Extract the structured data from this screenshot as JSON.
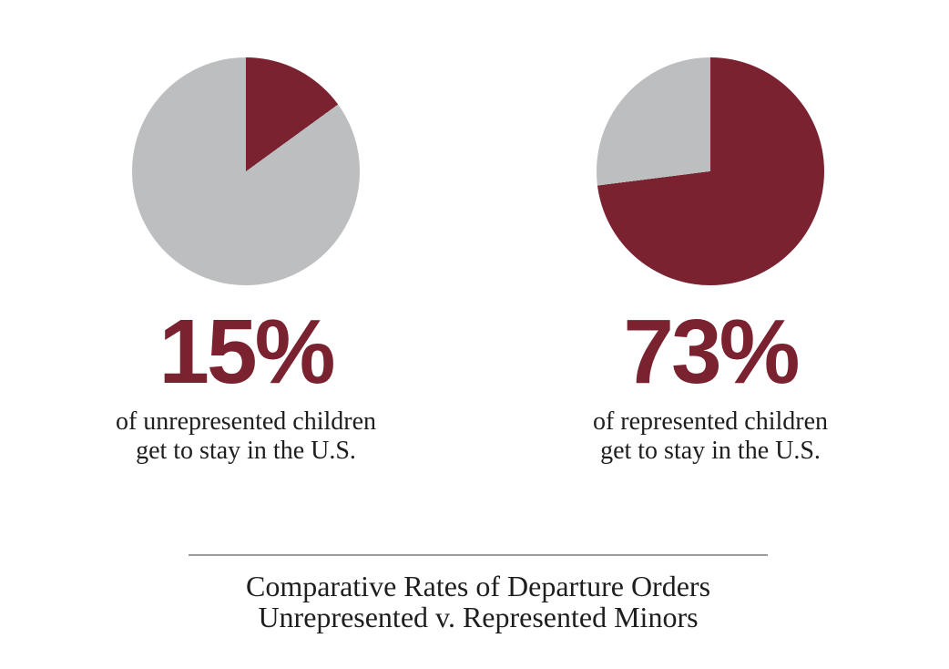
{
  "colors": {
    "maroon": "#7A2230",
    "gray": "#BCBEC0",
    "text": "#1E1E1E",
    "divider": "#9B9B9B",
    "background": "#FFFFFF"
  },
  "chart_data": [
    {
      "type": "pie",
      "group": "Unrepresented minors",
      "pct_label": "15%",
      "value": 15,
      "start_angle_deg": 0,
      "direction": "clockwise-from-top",
      "slices": [
        {
          "label": "get to stay in the U.S.",
          "value": 15,
          "color_key": "maroon"
        },
        {
          "label": "remainder",
          "value": 85,
          "color_key": "gray"
        }
      ],
      "desc_line1": "of unrepresented children",
      "desc_line2": "get to stay in the U.S."
    },
    {
      "type": "pie",
      "group": "Represented minors",
      "pct_label": "73%",
      "value": 73,
      "start_angle_deg": 0,
      "direction": "clockwise-from-top",
      "slices": [
        {
          "label": "get to stay in the U.S.",
          "value": 73,
          "color_key": "maroon"
        },
        {
          "label": "remainder",
          "value": 27,
          "color_key": "gray"
        }
      ],
      "desc_line1": "of represented children",
      "desc_line2": "get to stay in the U.S."
    }
  ],
  "caption": {
    "line1": "Comparative Rates of Departure Orders",
    "line2": "Unrepresented v. Represented Minors"
  }
}
